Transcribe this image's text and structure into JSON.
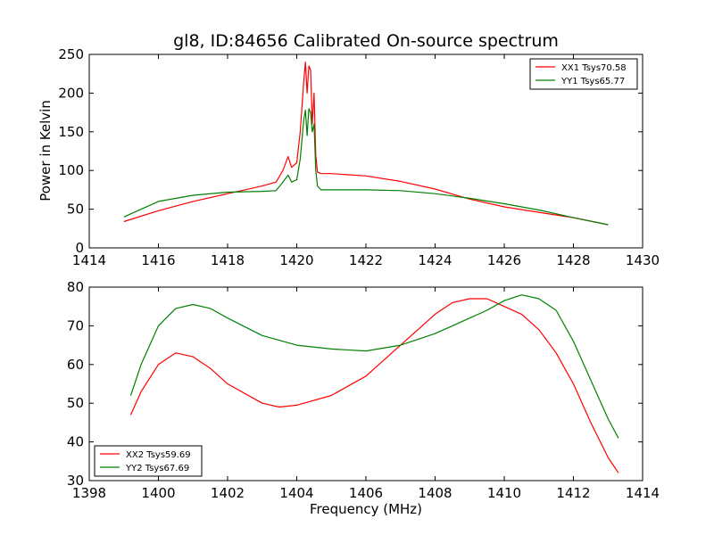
{
  "chart_data": [
    {
      "type": "line",
      "title": "gl8, ID:84656 Calibrated On-source spectrum",
      "xlabel": "",
      "ylabel": "Power in Kelvin",
      "xlim": [
        1414,
        1430
      ],
      "ylim": [
        0,
        250
      ],
      "xticks": [
        "1414",
        "1416",
        "1418",
        "1420",
        "1422",
        "1424",
        "1426",
        "1428",
        "1430"
      ],
      "yticks": [
        "0",
        "50",
        "100",
        "150",
        "200",
        "250"
      ],
      "legend": "top-right",
      "series": [
        {
          "name": "XX1 Tsys70.58",
          "color": "#ff0000",
          "x": [
            1415,
            1416,
            1417,
            1418,
            1418.5,
            1419,
            1419.4,
            1419.6,
            1419.75,
            1419.85,
            1420.0,
            1420.1,
            1420.2,
            1420.25,
            1420.3,
            1420.35,
            1420.4,
            1420.45,
            1420.5,
            1420.55,
            1420.6,
            1420.7,
            1421,
            1422,
            1423,
            1424,
            1425,
            1426,
            1427,
            1428,
            1429
          ],
          "y": [
            34,
            48,
            60,
            70,
            75,
            80,
            85,
            100,
            118,
            104,
            110,
            150,
            215,
            240,
            200,
            235,
            230,
            160,
            200,
            120,
            98,
            96,
            96,
            93,
            86,
            76,
            63,
            53,
            46,
            39,
            30
          ]
        },
        {
          "name": "YY1 Tsys65.77",
          "color": "#008000",
          "x": [
            1415,
            1416,
            1417,
            1418,
            1419,
            1419.4,
            1419.6,
            1419.75,
            1419.85,
            1420.0,
            1420.1,
            1420.2,
            1420.25,
            1420.3,
            1420.35,
            1420.4,
            1420.45,
            1420.5,
            1420.55,
            1420.6,
            1420.7,
            1421,
            1422,
            1423,
            1424,
            1425,
            1426,
            1427,
            1428,
            1429
          ],
          "y": [
            40,
            60,
            68,
            72,
            73,
            74,
            85,
            94,
            85,
            88,
            115,
            165,
            178,
            145,
            180,
            175,
            150,
            160,
            100,
            80,
            75,
            75,
            75,
            74,
            70,
            64,
            57,
            49,
            39,
            30
          ]
        }
      ]
    },
    {
      "type": "line",
      "title": "",
      "xlabel": "Frequency (MHz)",
      "ylabel": "",
      "xlim": [
        1398,
        1414
      ],
      "ylim": [
        30,
        80
      ],
      "xticks": [
        "1398",
        "1400",
        "1402",
        "1404",
        "1406",
        "1408",
        "1410",
        "1412",
        "1414"
      ],
      "yticks": [
        "30",
        "40",
        "50",
        "60",
        "70",
        "80"
      ],
      "legend": "bottom-left",
      "series": [
        {
          "name": "XX2 Tsys59.69",
          "color": "#ff0000",
          "x": [
            1399.2,
            1399.5,
            1400.0,
            1400.5,
            1401.0,
            1401.5,
            1402.0,
            1403.0,
            1403.5,
            1404.0,
            1405.0,
            1406.0,
            1407.0,
            1408.0,
            1408.5,
            1409.0,
            1409.5,
            1410.0,
            1410.5,
            1411.0,
            1411.5,
            1412.0,
            1412.5,
            1413.0,
            1413.3
          ],
          "y": [
            47,
            53,
            60,
            63,
            62,
            59,
            55,
            50,
            49,
            49.5,
            52,
            57,
            65,
            73,
            76,
            77,
            77,
            75,
            73,
            69,
            63,
            55,
            45,
            36,
            32
          ]
        },
        {
          "name": "YY2 Tsys67.69",
          "color": "#008000",
          "x": [
            1399.2,
            1399.5,
            1400.0,
            1400.5,
            1401.0,
            1401.5,
            1402.0,
            1403.0,
            1404.0,
            1405.0,
            1406.0,
            1407.0,
            1408.0,
            1408.5,
            1409.0,
            1409.5,
            1410.0,
            1410.5,
            1411.0,
            1411.5,
            1412.0,
            1412.5,
            1413.0,
            1413.3
          ],
          "y": [
            52,
            60,
            70,
            74.5,
            75.5,
            74.5,
            72,
            67.5,
            65,
            64,
            63.5,
            65,
            68,
            70,
            72,
            74,
            76.5,
            78,
            77,
            74,
            66,
            56,
            46,
            41
          ]
        }
      ]
    }
  ]
}
